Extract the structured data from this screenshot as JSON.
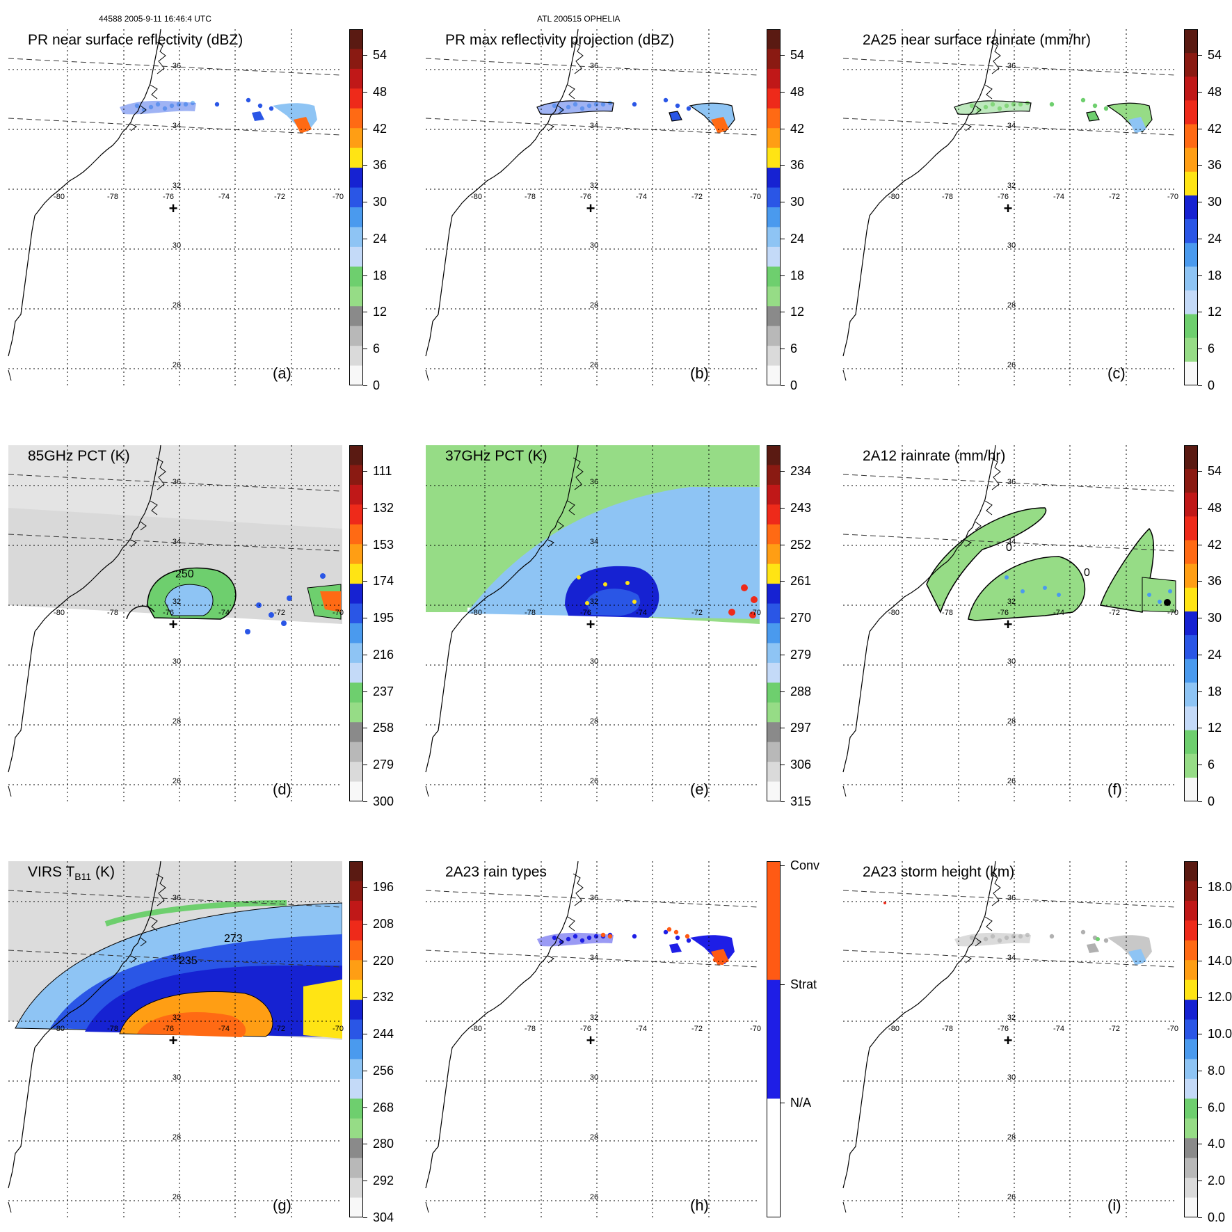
{
  "header": {
    "orbit_time": "44588 2005-9-11 16:46:4 UTC",
    "storm": "ATL 200515 OPHELIA"
  },
  "map": {
    "lon_labels": [
      "-80",
      "-78",
      "-76",
      "-74",
      "-72",
      "-70"
    ],
    "lat_labels": [
      "36",
      "34",
      "32",
      "30",
      "28",
      "26"
    ],
    "center_marker": "+"
  },
  "panels": [
    {
      "id": "a",
      "title": "PR near surface reflectivity (dBZ)",
      "tag": "(a)",
      "kind": "pr",
      "colorbar": {
        "labels": [
          "54",
          "48",
          "42",
          "36",
          "30",
          "24",
          "18",
          "12",
          "6",
          "0"
        ],
        "colors": [
          "#5a1a12",
          "#8a1a12",
          "#c01818",
          "#ee2a1a",
          "#ff6a14",
          "#ff9e14",
          "#ffe414",
          "#1622d2",
          "#2a56e6",
          "#4a9aee",
          "#8ec4f4",
          "#c4daf8",
          "#6ecf6e",
          "#96dc86",
          "#8a8a8a",
          "#b8b8b8",
          "#dadada",
          "#f8f8f8"
        ]
      }
    },
    {
      "id": "b",
      "title": "PR max reflectivity projection (dBZ)",
      "tag": "(b)",
      "kind": "pr",
      "colorbar": {
        "labels": [
          "54",
          "48",
          "42",
          "36",
          "30",
          "24",
          "18",
          "12",
          "6",
          "0"
        ],
        "colors": [
          "#5a1a12",
          "#8a1a12",
          "#c01818",
          "#ee2a1a",
          "#ff6a14",
          "#ff9e14",
          "#ffe414",
          "#1622d2",
          "#2a56e6",
          "#4a9aee",
          "#8ec4f4",
          "#c4daf8",
          "#6ecf6e",
          "#96dc86",
          "#8a8a8a",
          "#b8b8b8",
          "#dadada",
          "#f8f8f8"
        ]
      }
    },
    {
      "id": "c",
      "title": "2A25 near surface rainrate (mm/hr)",
      "tag": "(c)",
      "kind": "pr",
      "colorbar": {
        "labels": [
          "54",
          "48",
          "42",
          "36",
          "30",
          "24",
          "18",
          "12",
          "6",
          "0"
        ],
        "colors": [
          "#5a1a12",
          "#8a1a12",
          "#c01818",
          "#ee2a1a",
          "#ff6a14",
          "#ff9e14",
          "#ffe414",
          "#1622d2",
          "#2a56e6",
          "#4a9aee",
          "#8ec4f4",
          "#c4daf8",
          "#6ecf6e",
          "#96dc86",
          "#f8f8f8"
        ]
      }
    },
    {
      "id": "d",
      "title": "85GHz PCT (K)",
      "tag": "(d)",
      "kind": "tmi85",
      "contour_label": "250",
      "colorbar": {
        "labels": [
          "111",
          "132",
          "153",
          "174",
          "195",
          "216",
          "237",
          "258",
          "279",
          "300"
        ],
        "colors": [
          "#5a1a12",
          "#8a1a12",
          "#c01818",
          "#ee2a1a",
          "#ff6a14",
          "#ff9e14",
          "#ffe414",
          "#1622d2",
          "#2a56e6",
          "#4a9aee",
          "#8ec4f4",
          "#c4daf8",
          "#6ecf6e",
          "#96dc86",
          "#8a8a8a",
          "#b8b8b8",
          "#dadada",
          "#f8f8f8"
        ]
      }
    },
    {
      "id": "e",
      "title": "37GHz PCT (K)",
      "tag": "(e)",
      "kind": "tmi37",
      "colorbar": {
        "labels": [
          "234",
          "243",
          "252",
          "261",
          "270",
          "279",
          "288",
          "297",
          "306",
          "315"
        ],
        "colors": [
          "#5a1a12",
          "#8a1a12",
          "#c01818",
          "#ee2a1a",
          "#ff6a14",
          "#ff9e14",
          "#ffe414",
          "#1622d2",
          "#2a56e6",
          "#4a9aee",
          "#8ec4f4",
          "#c4daf8",
          "#6ecf6e",
          "#96dc86",
          "#8a8a8a",
          "#b8b8b8",
          "#dadada",
          "#f8f8f8"
        ]
      }
    },
    {
      "id": "f",
      "title": "2A12 rainrate (mm/hr)",
      "tag": "(f)",
      "kind": "tmirain",
      "contour_label": "0",
      "colorbar": {
        "labels": [
          "54",
          "48",
          "42",
          "36",
          "30",
          "24",
          "18",
          "12",
          "6",
          "0"
        ],
        "colors": [
          "#5a1a12",
          "#8a1a12",
          "#c01818",
          "#ee2a1a",
          "#ff6a14",
          "#ff9e14",
          "#ffe414",
          "#1622d2",
          "#2a56e6",
          "#4a9aee",
          "#8ec4f4",
          "#c4daf8",
          "#6ecf6e",
          "#96dc86",
          "#f8f8f8"
        ]
      }
    },
    {
      "id": "g",
      "title_main": "VIRS T",
      "title_sub": "B11",
      "title_end": " (K)",
      "tag": "(g)",
      "kind": "virs",
      "contour_labels": [
        "273",
        "235"
      ],
      "colorbar": {
        "labels": [
          "196",
          "208",
          "220",
          "232",
          "244",
          "256",
          "268",
          "280",
          "292",
          "304"
        ],
        "colors": [
          "#5a1a12",
          "#8a1a12",
          "#c01818",
          "#ee2a1a",
          "#ff6a14",
          "#ff9e14",
          "#ffe414",
          "#1622d2",
          "#2a56e6",
          "#4a9aee",
          "#8ec4f4",
          "#c4daf8",
          "#6ecf6e",
          "#96dc86",
          "#8a8a8a",
          "#b8b8b8",
          "#dadada",
          "#f8f8f8"
        ]
      }
    },
    {
      "id": "h",
      "title": "2A23 rain types",
      "tag": "(h)",
      "kind": "raintype",
      "colorbar": {
        "labels": [
          "Conv",
          "Strat",
          "N/A"
        ],
        "colors": [
          "#ff5a14",
          "#1e1ee6",
          "#ffffff"
        ]
      }
    },
    {
      "id": "i",
      "title": "2A23 storm height (km)",
      "tag": "(i)",
      "kind": "height",
      "colorbar": {
        "labels": [
          "18.0",
          "16.0",
          "14.0",
          "12.0",
          "10.0",
          "8.0",
          "6.0",
          "4.0",
          "2.0",
          "0.0"
        ],
        "colors": [
          "#5a1a12",
          "#8a1a12",
          "#c01818",
          "#ee2a1a",
          "#ff6a14",
          "#ff9e14",
          "#ffe414",
          "#1622d2",
          "#2a56e6",
          "#4a9aee",
          "#8ec4f4",
          "#c4daf8",
          "#6ecf6e",
          "#96dc86",
          "#8a8a8a",
          "#b8b8b8",
          "#dadada",
          "#f8f8f8"
        ]
      }
    }
  ]
}
